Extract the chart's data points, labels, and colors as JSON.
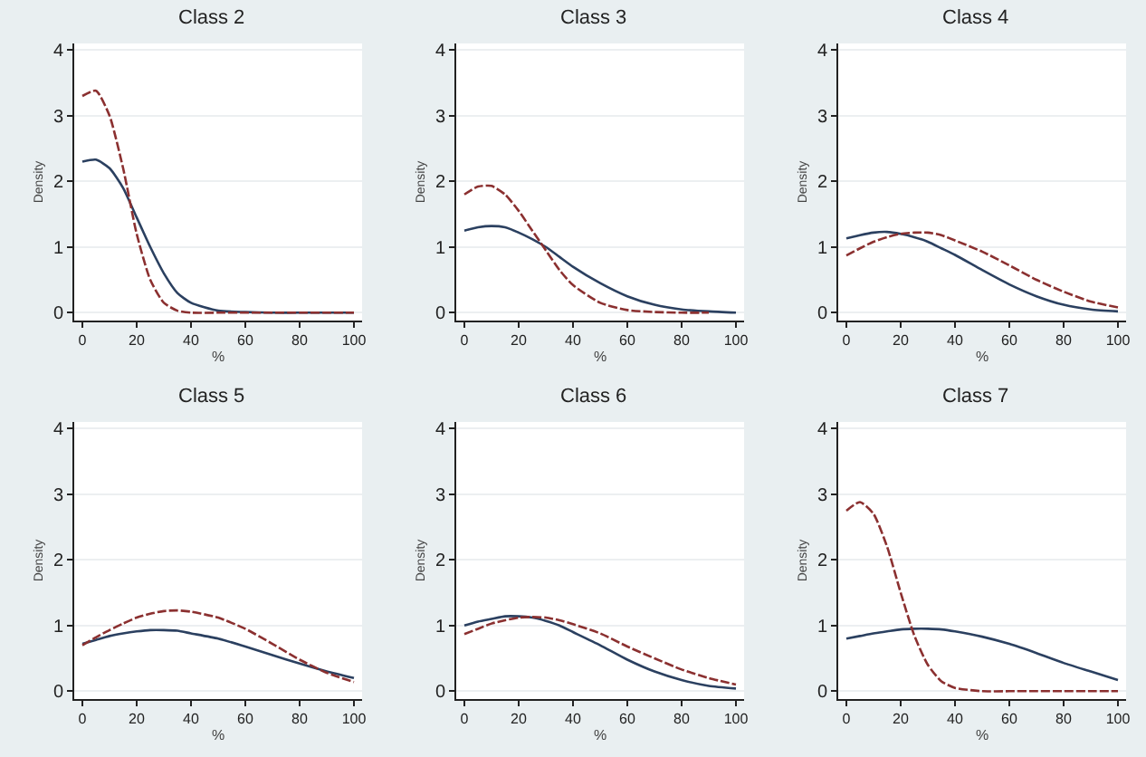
{
  "chart_data": [
    {
      "type": "line",
      "title": "Class 2",
      "xlabel": "%",
      "ylabel": "Density",
      "x": [
        0,
        5,
        10,
        15,
        20,
        25,
        30,
        35,
        40,
        50,
        60,
        70,
        80,
        90,
        100
      ],
      "xlim": [
        -3,
        103
      ],
      "xticks": [
        0,
        20,
        40,
        60,
        80,
        100
      ],
      "ylim": [
        -0.12,
        4.1
      ],
      "yticks": [
        0,
        1,
        2,
        3,
        4
      ],
      "grid": "y",
      "series": [
        {
          "color": "#2b4060",
          "line_style": "solid",
          "values": [
            2.3,
            2.33,
            2.2,
            1.9,
            1.45,
            1.0,
            0.6,
            0.3,
            0.15,
            0.03,
            0.01,
            0,
            0,
            0,
            0
          ]
        },
        {
          "color": "#8b3030",
          "line_style": "dashed",
          "values": [
            3.3,
            3.38,
            3.0,
            2.2,
            1.2,
            0.5,
            0.15,
            0.03,
            0,
            0,
            0,
            0,
            0,
            0,
            0
          ]
        }
      ]
    },
    {
      "type": "line",
      "title": "Class 3",
      "xlabel": "%",
      "ylabel": "Density",
      "x": [
        0,
        5,
        10,
        15,
        20,
        25,
        30,
        35,
        40,
        50,
        60,
        70,
        80,
        90,
        100
      ],
      "xlim": [
        -3,
        103
      ],
      "xticks": [
        0,
        20,
        40,
        60,
        80,
        100
      ],
      "ylim": [
        -0.12,
        4.1
      ],
      "yticks": [
        0,
        1,
        2,
        3,
        4
      ],
      "grid": "y",
      "series": [
        {
          "color": "#2b4060",
          "line_style": "solid",
          "values": [
            1.25,
            1.3,
            1.32,
            1.3,
            1.22,
            1.12,
            1.0,
            0.85,
            0.7,
            0.45,
            0.25,
            0.12,
            0.05,
            0.02,
            0
          ]
        },
        {
          "color": "#8b3030",
          "line_style": "dashed",
          "values": [
            1.8,
            1.92,
            1.93,
            1.8,
            1.55,
            1.25,
            0.95,
            0.65,
            0.42,
            0.15,
            0.04,
            0.01,
            0,
            0,
            null
          ]
        }
      ]
    },
    {
      "type": "line",
      "title": "Class 4",
      "xlabel": "%",
      "ylabel": "Density",
      "x": [
        0,
        5,
        10,
        15,
        20,
        25,
        30,
        35,
        40,
        50,
        60,
        70,
        80,
        90,
        100
      ],
      "xlim": [
        -3,
        103
      ],
      "xticks": [
        0,
        20,
        40,
        60,
        80,
        100
      ],
      "ylim": [
        -0.12,
        4.1
      ],
      "yticks": [
        0,
        1,
        2,
        3,
        4
      ],
      "grid": "y",
      "series": [
        {
          "color": "#2b4060",
          "line_style": "solid",
          "values": [
            1.13,
            1.18,
            1.22,
            1.23,
            1.2,
            1.15,
            1.08,
            0.98,
            0.88,
            0.65,
            0.43,
            0.25,
            0.12,
            0.05,
            0.02
          ]
        },
        {
          "color": "#8b3030",
          "line_style": "dashed",
          "values": [
            0.87,
            0.98,
            1.08,
            1.15,
            1.2,
            1.22,
            1.22,
            1.18,
            1.1,
            0.93,
            0.72,
            0.5,
            0.32,
            0.17,
            0.08
          ]
        }
      ]
    },
    {
      "type": "line",
      "title": "Class 5",
      "xlabel": "%",
      "ylabel": "Density",
      "x": [
        0,
        5,
        10,
        15,
        20,
        25,
        30,
        35,
        40,
        50,
        60,
        70,
        80,
        90,
        100
      ],
      "xlim": [
        -3,
        103
      ],
      "xticks": [
        0,
        20,
        40,
        60,
        80,
        100
      ],
      "ylim": [
        -0.12,
        4.1
      ],
      "yticks": [
        0,
        1,
        2,
        3,
        4
      ],
      "grid": "y",
      "series": [
        {
          "color": "#2b4060",
          "line_style": "solid",
          "values": [
            0.72,
            0.78,
            0.84,
            0.88,
            0.91,
            0.93,
            0.93,
            0.92,
            0.88,
            0.8,
            0.68,
            0.55,
            0.42,
            0.3,
            0.2
          ]
        },
        {
          "color": "#8b3030",
          "line_style": "dashed",
          "values": [
            0.7,
            0.82,
            0.93,
            1.03,
            1.12,
            1.18,
            1.22,
            1.23,
            1.21,
            1.12,
            0.95,
            0.72,
            0.48,
            0.28,
            0.14
          ]
        }
      ]
    },
    {
      "type": "line",
      "title": "Class 6",
      "xlabel": "%",
      "ylabel": "Density",
      "x": [
        0,
        5,
        10,
        15,
        20,
        25,
        30,
        35,
        40,
        50,
        60,
        70,
        80,
        90,
        100
      ],
      "xlim": [
        -3,
        103
      ],
      "xticks": [
        0,
        20,
        40,
        60,
        80,
        100
      ],
      "ylim": [
        -0.12,
        4.1
      ],
      "yticks": [
        0,
        1,
        2,
        3,
        4
      ],
      "grid": "y",
      "series": [
        {
          "color": "#2b4060",
          "line_style": "solid",
          "values": [
            1.0,
            1.06,
            1.1,
            1.14,
            1.14,
            1.12,
            1.07,
            1.0,
            0.9,
            0.7,
            0.48,
            0.3,
            0.17,
            0.08,
            0.04
          ]
        },
        {
          "color": "#8b3030",
          "line_style": "dashed",
          "values": [
            0.87,
            0.95,
            1.03,
            1.08,
            1.12,
            1.13,
            1.12,
            1.08,
            1.02,
            0.88,
            0.68,
            0.5,
            0.33,
            0.2,
            0.1
          ]
        }
      ]
    },
    {
      "type": "line",
      "title": "Class 7",
      "xlabel": "%",
      "ylabel": "Density",
      "x": [
        0,
        5,
        10,
        15,
        20,
        25,
        30,
        35,
        40,
        50,
        60,
        70,
        80,
        90,
        100
      ],
      "xlim": [
        -3,
        103
      ],
      "xticks": [
        0,
        20,
        40,
        60,
        80,
        100
      ],
      "ylim": [
        -0.12,
        4.1
      ],
      "yticks": [
        0,
        1,
        2,
        3,
        4
      ],
      "grid": "y",
      "series": [
        {
          "color": "#2b4060",
          "line_style": "solid",
          "values": [
            0.8,
            0.84,
            0.88,
            0.91,
            0.94,
            0.95,
            0.95,
            0.94,
            0.91,
            0.83,
            0.72,
            0.58,
            0.43,
            0.3,
            0.17
          ]
        },
        {
          "color": "#8b3030",
          "line_style": "dashed",
          "values": [
            2.75,
            2.88,
            2.7,
            2.2,
            1.5,
            0.85,
            0.4,
            0.15,
            0.05,
            0,
            0,
            0,
            0,
            0,
            0
          ]
        }
      ]
    }
  ]
}
